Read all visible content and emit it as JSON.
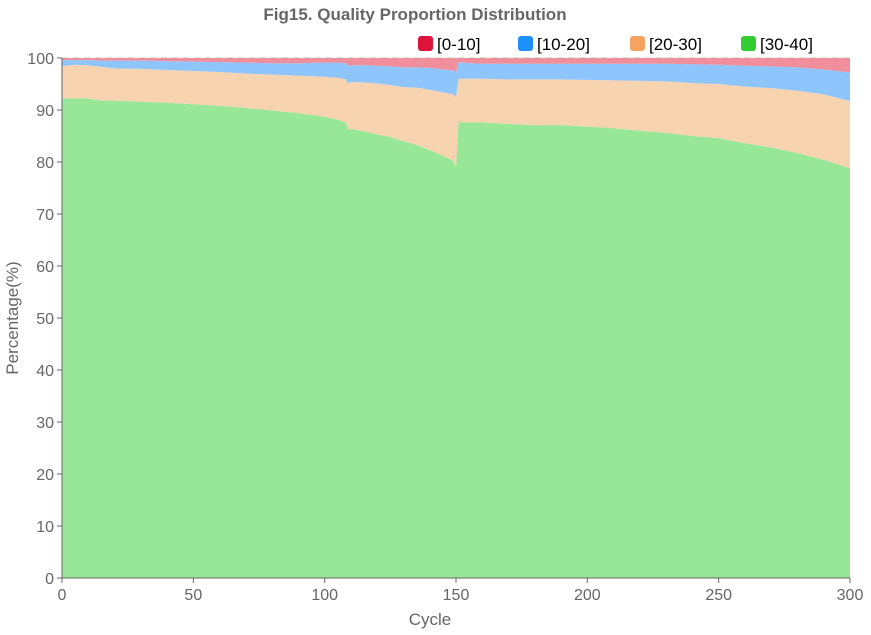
{
  "chart_data": {
    "type": "area",
    "stacked": true,
    "normalized_percent": true,
    "title": "Fig15. Quality Proportion Distribution",
    "xlabel": "Cycle",
    "ylabel": "Percentage(%)",
    "xlim": [
      0,
      300
    ],
    "ylim": [
      0,
      100
    ],
    "xticks": [
      0,
      50,
      100,
      150,
      200,
      250,
      300
    ],
    "yticks": [
      0,
      10,
      20,
      30,
      40,
      50,
      60,
      70,
      80,
      90,
      100
    ],
    "grid": "horizontal dashed",
    "legend_position": "top-right",
    "x": [
      1,
      5,
      10,
      15,
      20,
      30,
      40,
      50,
      60,
      70,
      80,
      90,
      100,
      105,
      108,
      109,
      110,
      115,
      120,
      125,
      130,
      135,
      140,
      145,
      149,
      150,
      151,
      152,
      160,
      170,
      180,
      190,
      200,
      210,
      220,
      230,
      240,
      250,
      260,
      270,
      280,
      290,
      300
    ],
    "series": [
      {
        "name": "[30-40]",
        "color": "#98e698",
        "legend_color": "#33cc33",
        "values": [
          92.2,
          92.2,
          92.2,
          91.8,
          91.8,
          91.6,
          91.4,
          91.1,
          90.8,
          90.4,
          89.9,
          89.4,
          88.7,
          88.1,
          87.6,
          86.2,
          86.4,
          85.9,
          85.3,
          84.8,
          84.0,
          83.3,
          82.3,
          81.2,
          80.2,
          78.9,
          88.0,
          87.6,
          87.6,
          87.3,
          87.1,
          87.1,
          86.8,
          86.5,
          86.0,
          85.6,
          85.0,
          84.6,
          83.6,
          82.8,
          81.7,
          80.4,
          78.8
        ]
      },
      {
        "name": "[20-30]",
        "color": "#f8d3b0",
        "legend_color": "#f4a460",
        "values": [
          6.3,
          6.5,
          6.4,
          6.5,
          6.2,
          6.3,
          6.3,
          6.4,
          6.5,
          6.6,
          6.9,
          7.2,
          7.7,
          8.1,
          8.3,
          8.9,
          9.0,
          9.4,
          9.8,
          10.0,
          10.4,
          11.0,
          11.6,
          12.2,
          12.8,
          13.6,
          8.0,
          8.4,
          8.4,
          8.6,
          8.8,
          8.8,
          9.0,
          9.2,
          9.6,
          9.9,
          10.2,
          10.4,
          10.9,
          11.4,
          12.0,
          12.6,
          12.9
        ]
      },
      {
        "name": "[10-20]",
        "color": "#8ec5fd",
        "legend_color": "#1e90ff",
        "values": [
          1.1,
          0.9,
          1.0,
          1.2,
          1.5,
          1.6,
          1.7,
          1.8,
          1.9,
          2.1,
          2.2,
          2.4,
          2.7,
          2.9,
          3.1,
          3.4,
          3.2,
          3.3,
          3.4,
          3.6,
          3.8,
          3.9,
          4.2,
          4.4,
          4.6,
          4.8,
          3.2,
          3.1,
          2.9,
          3.0,
          3.0,
          3.0,
          3.1,
          3.2,
          3.3,
          3.4,
          3.6,
          3.7,
          4.0,
          4.2,
          4.5,
          4.8,
          5.5
        ]
      },
      {
        "name": "[0-10]",
        "color": "#ef8f9c",
        "legend_color": "#dc143c",
        "values": [
          0.4,
          0.4,
          0.4,
          0.5,
          0.5,
          0.5,
          0.6,
          0.7,
          0.8,
          0.9,
          1.0,
          1.0,
          0.9,
          0.9,
          1.0,
          1.5,
          1.4,
          1.4,
          1.5,
          1.6,
          1.8,
          1.8,
          1.9,
          2.2,
          2.4,
          2.7,
          0.8,
          0.9,
          1.1,
          1.1,
          1.1,
          1.1,
          1.1,
          1.1,
          1.1,
          1.1,
          1.2,
          1.3,
          1.5,
          1.6,
          1.8,
          2.2,
          2.8
        ]
      }
    ]
  }
}
